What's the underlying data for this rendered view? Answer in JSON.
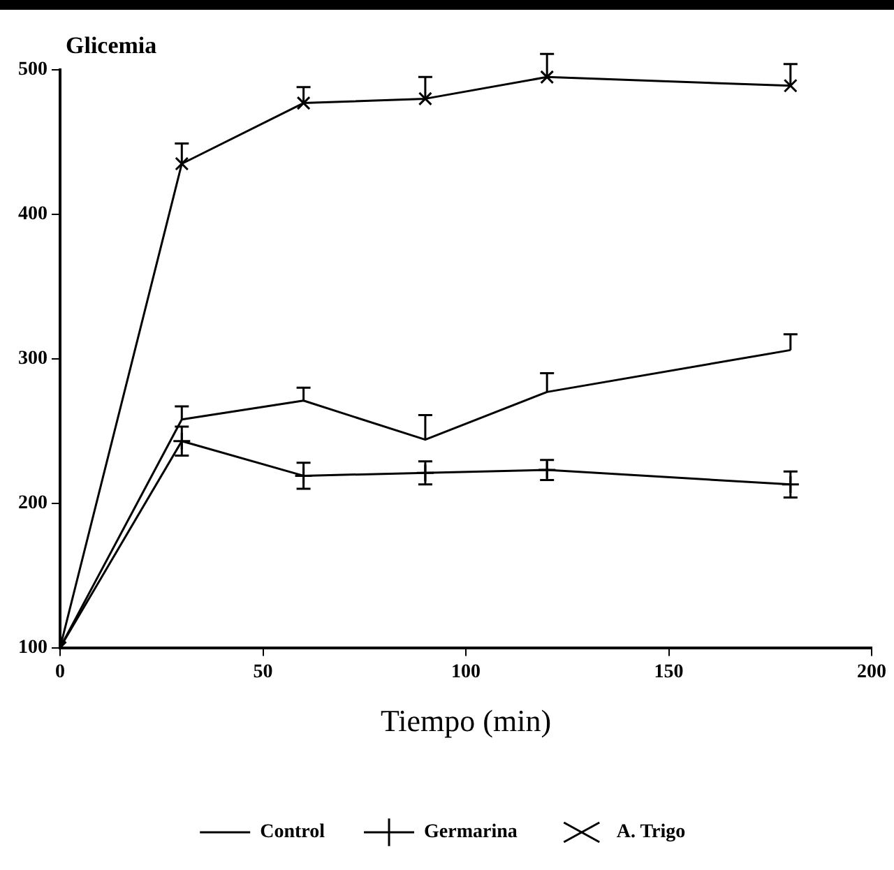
{
  "chart_data": {
    "type": "line",
    "ylabel": "Glicemia",
    "xlabel": "Tiempo (min)",
    "x": [
      0,
      30,
      60,
      90,
      120,
      180
    ],
    "series": [
      {
        "name": "Control",
        "color": "#000000",
        "marker": "none",
        "values": [
          100,
          258,
          271,
          244,
          277,
          306
        ],
        "errors": [
          null,
          [
            258,
            267
          ],
          [
            271,
            280
          ],
          [
            244,
            261
          ],
          [
            277,
            290
          ],
          [
            306,
            317
          ]
        ]
      },
      {
        "name": "Germarina",
        "color": "#000000",
        "marker": "cross",
        "values": [
          100,
          243,
          219,
          221,
          223,
          213
        ],
        "errors": [
          null,
          10,
          9,
          8,
          7,
          9
        ]
      },
      {
        "name": "A. Trigo",
        "color": "#000000",
        "marker": "x",
        "values": [
          100,
          435,
          477,
          480,
          495,
          489
        ],
        "errors": [
          null,
          [
            435,
            449
          ],
          [
            477,
            488
          ],
          [
            480,
            495
          ],
          [
            495,
            511
          ],
          [
            489,
            504
          ]
        ]
      }
    ],
    "xlim": [
      0,
      200
    ],
    "xticks": [
      0,
      50,
      100,
      150,
      200
    ],
    "ylim": [
      100,
      500
    ],
    "yticks": [
      100,
      200,
      300,
      400,
      500
    ],
    "grid": false,
    "legend": "bottom",
    "line_style": "solid"
  }
}
